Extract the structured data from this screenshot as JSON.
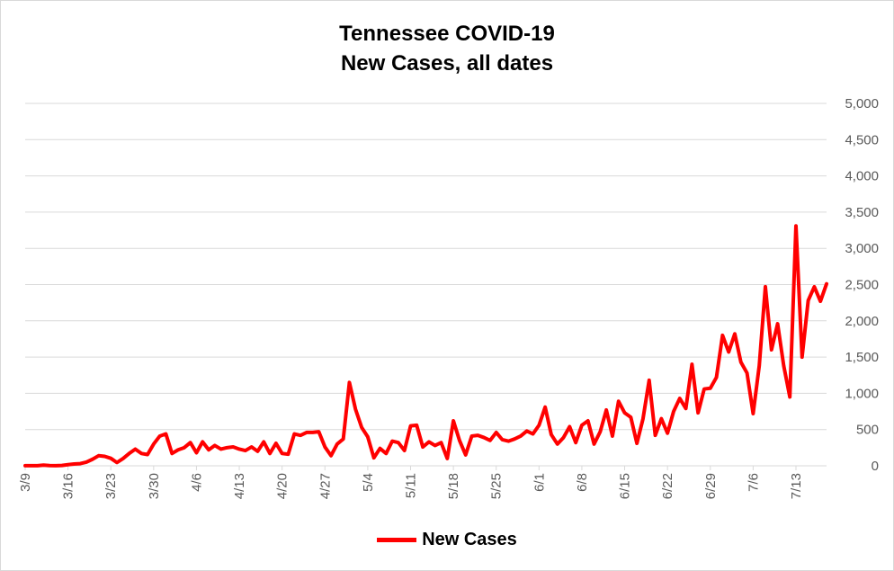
{
  "chart_data": {
    "type": "line",
    "title_lines": [
      "Tennessee COVID-19",
      "New Cases, all dates"
    ],
    "xlabel": "",
    "ylabel": "",
    "x_start": "3/9",
    "tick_labels": [
      "3/9",
      "3/16",
      "3/23",
      "3/30",
      "4/6",
      "4/13",
      "4/20",
      "4/27",
      "5/4",
      "5/11",
      "5/18",
      "5/25",
      "6/1",
      "6/8",
      "6/15",
      "6/22",
      "6/29",
      "7/6",
      "7/13"
    ],
    "y_ticks": [
      "0",
      "500",
      "1,000",
      "1,500",
      "2,000",
      "2,500",
      "3,000",
      "3,500",
      "4,000",
      "4,500",
      "5,000"
    ],
    "ylim": [
      0,
      5000
    ],
    "y_axis_position": "right",
    "grid": true,
    "legend_position": "bottom",
    "color": "#ff0000",
    "series": [
      {
        "name": "New Cases",
        "values": [
          1,
          1,
          1,
          9,
          3,
          2,
          5,
          15,
          25,
          30,
          51,
          90,
          139,
          130,
          103,
          45,
          100,
          170,
          230,
          170,
          155,
          300,
          410,
          440,
          170,
          220,
          250,
          320,
          180,
          330,
          220,
          280,
          230,
          250,
          260,
          230,
          210,
          260,
          200,
          330,
          170,
          310,
          170,
          160,
          440,
          420,
          460,
          460,
          470,
          260,
          140,
          300,
          370,
          1150,
          780,
          530,
          400,
          110,
          240,
          170,
          340,
          320,
          210,
          550,
          560,
          260,
          330,
          280,
          320,
          100,
          620,
          350,
          150,
          410,
          420,
          390,
          350,
          460,
          360,
          340,
          370,
          410,
          480,
          440,
          560,
          810,
          430,
          300,
          390,
          540,
          320,
          560,
          620,
          300,
          470,
          770,
          410,
          890,
          730,
          670,
          310,
          650,
          1180,
          420,
          650,
          450,
          750,
          930,
          790,
          1400,
          730,
          1060,
          1070,
          1220,
          1800,
          1570,
          1820,
          1430,
          1280,
          720,
          1380,
          2470,
          1600,
          1960,
          1380,
          950,
          3310,
          1500,
          2280,
          2470,
          2270,
          2510
        ]
      }
    ]
  }
}
